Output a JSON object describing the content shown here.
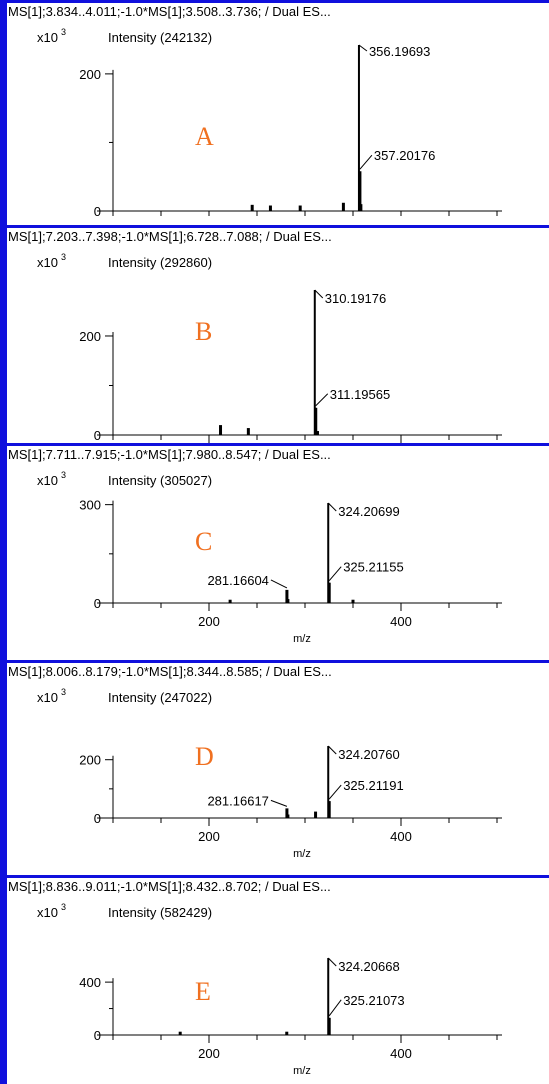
{
  "colors": {
    "border": "#1010dd",
    "letter": "#f07020",
    "ink": "#000000"
  },
  "chart_data": [
    {
      "type": "bar",
      "label": "A",
      "title": "MS[1];3.834..4.011;-1.0*MS[1];3.508..3.736; / Dual ES...",
      "scale_prefix": "x10",
      "scale_exp": "3",
      "intensity_text": "Intensity (242132)",
      "xlabel": "",
      "xlim": [
        100,
        500
      ],
      "ylim": [
        0,
        242.132
      ],
      "y_ticks": [
        0,
        200
      ],
      "x_ticks": [],
      "x_minor_ticks": [
        100,
        150,
        200,
        250,
        300,
        350,
        400,
        450,
        500
      ],
      "peaks": [
        {
          "x": 356.19693,
          "y": 242.132,
          "label": "356.19693"
        },
        {
          "x": 357.20176,
          "y": 58.0,
          "label": "357.20176"
        },
        {
          "x": 340.0,
          "y": 12.0
        },
        {
          "x": 358.2,
          "y": 10.0
        },
        {
          "x": 245.0,
          "y": 9.0
        },
        {
          "x": 264.0,
          "y": 8.0
        },
        {
          "x": 295.0,
          "y": 8.0
        }
      ]
    },
    {
      "type": "bar",
      "label": "B",
      "title": "MS[1];7.203..7.398;-1.0*MS[1];6.728..7.088; / Dual ES...",
      "scale_prefix": "x10",
      "scale_exp": "3",
      "intensity_text": "Intensity (292860)",
      "xlabel": "m/z",
      "xlim": [
        100,
        500
      ],
      "ylim": [
        0,
        292.86
      ],
      "y_ticks": [
        0,
        200
      ],
      "x_ticks": [
        200,
        400
      ],
      "x_minor_ticks": [
        100,
        150,
        250,
        300,
        350,
        450,
        500
      ],
      "peaks": [
        {
          "x": 310.19176,
          "y": 292.86,
          "label": "310.19176"
        },
        {
          "x": 311.19565,
          "y": 55.0,
          "label": "311.19565"
        },
        {
          "x": 212.0,
          "y": 20.0
        },
        {
          "x": 241.0,
          "y": 14.0
        },
        {
          "x": 313.0,
          "y": 8.0
        }
      ]
    },
    {
      "type": "bar",
      "label": "C",
      "title": "MS[1];7.711..7.915;-1.0*MS[1];7.980..8.547; / Dual ES...",
      "scale_prefix": "x10",
      "scale_exp": "3",
      "intensity_text": "Intensity (305027)",
      "xlabel": "m/z",
      "xlim": [
        100,
        500
      ],
      "ylim": [
        0,
        305.027
      ],
      "y_ticks": [
        0,
        300
      ],
      "x_ticks": [
        200,
        400
      ],
      "x_minor_ticks": [
        100,
        150,
        250,
        300,
        350,
        450,
        500
      ],
      "peaks": [
        {
          "x": 324.20699,
          "y": 305.027,
          "label": "324.20699"
        },
        {
          "x": 325.21155,
          "y": 62.0,
          "label": "325.21155"
        },
        {
          "x": 281.16604,
          "y": 40.0,
          "label": "281.16604"
        },
        {
          "x": 282.17,
          "y": 12.0
        },
        {
          "x": 222.0,
          "y": 10.0
        },
        {
          "x": 350.0,
          "y": 10.0
        }
      ]
    },
    {
      "type": "bar",
      "label": "D",
      "title": "MS[1];8.006..8.179;-1.0*MS[1];8.344..8.585; / Dual ES...",
      "scale_prefix": "x10",
      "scale_exp": "3",
      "intensity_text": "Intensity (247022)",
      "xlabel": "m/z",
      "xlim": [
        100,
        500
      ],
      "ylim": [
        0,
        247.022
      ],
      "y_ticks": [
        0,
        200
      ],
      "x_ticks": [
        200,
        400
      ],
      "x_minor_ticks": [
        100,
        150,
        250,
        300,
        350,
        450,
        500
      ],
      "peaks": [
        {
          "x": 324.2076,
          "y": 247.022,
          "label": "324.20760"
        },
        {
          "x": 325.21191,
          "y": 58.0,
          "label": "325.21191"
        },
        {
          "x": 281.16617,
          "y": 33.0,
          "label": "281.16617"
        },
        {
          "x": 282.17,
          "y": 12.0
        },
        {
          "x": 311.0,
          "y": 22.0
        }
      ]
    },
    {
      "type": "bar",
      "label": "E",
      "title": "MS[1];8.836..9.011;-1.0*MS[1];8.432..8.702; / Dual ES...",
      "scale_prefix": "x10",
      "scale_exp": "3",
      "intensity_text": "Intensity (582429)",
      "xlabel": "m/z",
      "xlim": [
        100,
        500
      ],
      "ylim": [
        0,
        582.429
      ],
      "y_ticks": [
        0,
        400
      ],
      "x_ticks": [
        200,
        400
      ],
      "x_minor_ticks": [
        100,
        150,
        250,
        300,
        350,
        450,
        500
      ],
      "peaks": [
        {
          "x": 324.20668,
          "y": 582.429,
          "label": "324.20668"
        },
        {
          "x": 325.21073,
          "y": 130.0,
          "label": "325.21073"
        },
        {
          "x": 170.0,
          "y": 25.0
        },
        {
          "x": 281.0,
          "y": 25.0
        }
      ]
    }
  ]
}
